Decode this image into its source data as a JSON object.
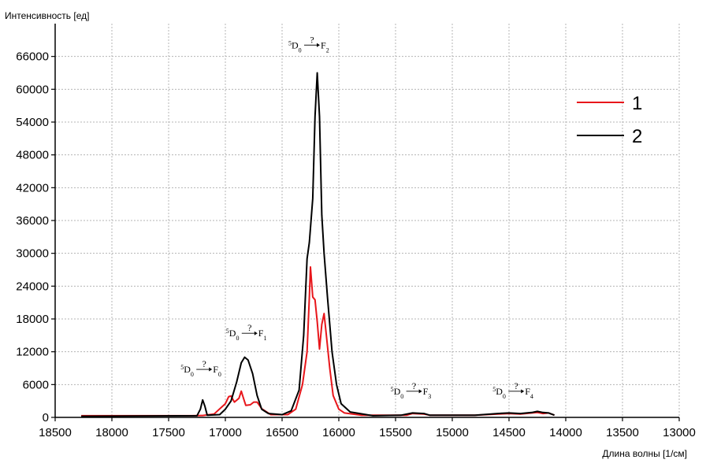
{
  "chart_data": {
    "type": "line",
    "ylabel": "Интенсивность [ед]",
    "xlabel": "Длина волны [1/см]",
    "xlim": [
      18500,
      13000
    ],
    "x_reversed": true,
    "ylim": [
      0,
      72000
    ],
    "x_ticks": [
      18500,
      18000,
      17500,
      17000,
      16500,
      16000,
      15500,
      15000,
      14500,
      14000,
      13500,
      13000
    ],
    "y_ticks": [
      0,
      6000,
      12000,
      18000,
      24000,
      30000,
      36000,
      42000,
      48000,
      54000,
      60000,
      66000
    ],
    "grid": true,
    "legend_position": "top-right",
    "series": [
      {
        "name": "1",
        "color": "#e8161b",
        "points": [
          [
            18270,
            300
          ],
          [
            17300,
            300
          ],
          [
            17200,
            350
          ],
          [
            17100,
            600
          ],
          [
            17000,
            2500
          ],
          [
            16970,
            3800
          ],
          [
            16950,
            3900
          ],
          [
            16920,
            2800
          ],
          [
            16880,
            3500
          ],
          [
            16860,
            4800
          ],
          [
            16840,
            3500
          ],
          [
            16820,
            2200
          ],
          [
            16780,
            2300
          ],
          [
            16750,
            2800
          ],
          [
            16720,
            2800
          ],
          [
            16680,
            1600
          ],
          [
            16600,
            500
          ],
          [
            16450,
            500
          ],
          [
            16380,
            1500
          ],
          [
            16320,
            6000
          ],
          [
            16280,
            12000
          ],
          [
            16260,
            22000
          ],
          [
            16250,
            27500
          ],
          [
            16230,
            22000
          ],
          [
            16210,
            21500
          ],
          [
            16190,
            17500
          ],
          [
            16170,
            12500
          ],
          [
            16150,
            17000
          ],
          [
            16130,
            19000
          ],
          [
            16110,
            15000
          ],
          [
            16080,
            9000
          ],
          [
            16050,
            4000
          ],
          [
            16000,
            1500
          ],
          [
            15950,
            800
          ],
          [
            15800,
            400
          ],
          [
            15400,
            400
          ],
          [
            15350,
            700
          ],
          [
            15250,
            600
          ],
          [
            15200,
            400
          ],
          [
            14800,
            400
          ],
          [
            14600,
            600
          ],
          [
            14500,
            700
          ],
          [
            14400,
            600
          ],
          [
            14300,
            800
          ],
          [
            14250,
            900
          ],
          [
            14200,
            700
          ],
          [
            14150,
            800
          ],
          [
            14100,
            400
          ]
        ]
      },
      {
        "name": "2",
        "color": "#000000",
        "points": [
          [
            18270,
            200
          ],
          [
            17250,
            300
          ],
          [
            17220,
            1500
          ],
          [
            17200,
            3200
          ],
          [
            17180,
            2000
          ],
          [
            17160,
            400
          ],
          [
            17050,
            500
          ],
          [
            17000,
            1500
          ],
          [
            16950,
            3000
          ],
          [
            16900,
            6500
          ],
          [
            16860,
            10000
          ],
          [
            16830,
            11000
          ],
          [
            16800,
            10500
          ],
          [
            16760,
            8000
          ],
          [
            16720,
            4000
          ],
          [
            16680,
            1500
          ],
          [
            16620,
            700
          ],
          [
            16500,
            500
          ],
          [
            16420,
            1200
          ],
          [
            16350,
            5000
          ],
          [
            16310,
            15000
          ],
          [
            16280,
            29000
          ],
          [
            16260,
            32000
          ],
          [
            16230,
            40000
          ],
          [
            16210,
            55000
          ],
          [
            16190,
            63000
          ],
          [
            16170,
            55000
          ],
          [
            16150,
            37000
          ],
          [
            16130,
            30000
          ],
          [
            16100,
            22000
          ],
          [
            16060,
            12000
          ],
          [
            16020,
            6000
          ],
          [
            15980,
            2500
          ],
          [
            15900,
            1000
          ],
          [
            15700,
            300
          ],
          [
            15450,
            400
          ],
          [
            15350,
            800
          ],
          [
            15250,
            700
          ],
          [
            15200,
            400
          ],
          [
            14800,
            400
          ],
          [
            14600,
            700
          ],
          [
            14500,
            800
          ],
          [
            14400,
            700
          ],
          [
            14300,
            900
          ],
          [
            14250,
            1100
          ],
          [
            14200,
            900
          ],
          [
            14150,
            800
          ],
          [
            14100,
            400
          ]
        ]
      }
    ],
    "annotations": [
      {
        "sup": "5",
        "base": "D",
        "sub0": "0",
        "mid": "?",
        "end": "F",
        "sub1": "0",
        "x": 17200,
        "y": 8200
      },
      {
        "sup": "5",
        "base": "D",
        "sub0": "0",
        "mid": "?",
        "end": "F",
        "sub1": "1",
        "x": 16800,
        "y": 14800
      },
      {
        "sup": "5",
        "base": "D",
        "sub0": "0",
        "mid": "?",
        "end": "F",
        "sub1": "2",
        "x": 16250,
        "y": 67500
      },
      {
        "sup": "5",
        "base": "D",
        "sub0": "0",
        "mid": "?",
        "end": "F",
        "sub1": "3",
        "x": 15350,
        "y": 4200
      },
      {
        "sup": "5",
        "base": "D",
        "sub0": "0",
        "mid": "?",
        "end": "F",
        "sub1": "4",
        "x": 14450,
        "y": 4200
      }
    ]
  }
}
